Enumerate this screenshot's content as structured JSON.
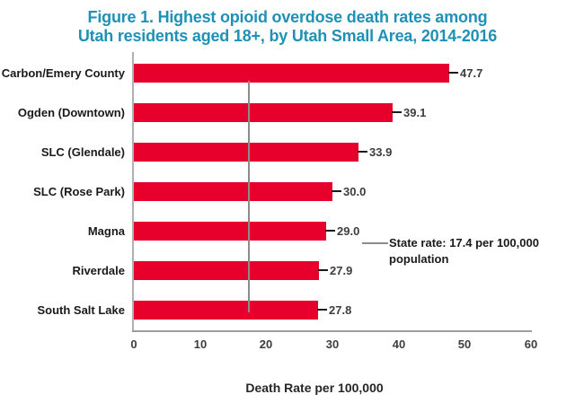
{
  "figure": {
    "title_line1": "Figure 1. Highest opioid overdose death rates among",
    "title_line2": "Utah residents aged 18+, by Utah Small Area, 2014-2016",
    "title_color": "#1f91b6"
  },
  "chart_data": {
    "type": "bar",
    "orientation": "horizontal",
    "categories": [
      "Carbon/Emery County",
      "Ogden (Downtown)",
      "SLC (Glendale)",
      "SLC (Rose Park)",
      "Magna",
      "Riverdale",
      "South Salt Lake"
    ],
    "values": [
      47.7,
      39.1,
      33.9,
      30.0,
      29.0,
      27.9,
      27.8
    ],
    "value_labels": [
      "47.7",
      "39.1",
      "33.9",
      "30.0",
      "29.0",
      "27.9",
      "27.8"
    ],
    "xlabel": "Death Rate per 100,000",
    "xlim": [
      0,
      60
    ],
    "xticks": [
      0,
      10,
      20,
      30,
      40,
      50,
      60
    ],
    "grid": false,
    "bar_color": "#e8002c",
    "axis_line_color": "#9c9c9c",
    "reference_line": {
      "value": 17.4,
      "color": "#8c8c8c",
      "label_line1": "State rate: 17.4 per 100,000",
      "label_line2": "population"
    }
  }
}
